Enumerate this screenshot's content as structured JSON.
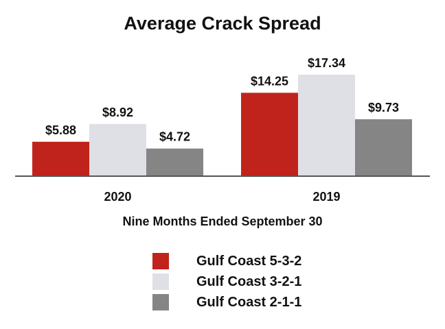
{
  "chart_data": {
    "type": "bar",
    "title": "Average Crack Spread",
    "xlabel": "Nine Months Ended September 30",
    "ylabel": "",
    "categories": [
      "2020",
      "2019"
    ],
    "series": [
      {
        "name": "Gulf Coast 5-3-2",
        "color": "#c0231b",
        "values": [
          5.88,
          14.25
        ],
        "labels": [
          "$5.88",
          "$14.25"
        ]
      },
      {
        "name": "Gulf Coast 3-2-1",
        "color": "#dfe0e5",
        "values": [
          8.92,
          17.34
        ],
        "labels": [
          "$8.92",
          "$17.34"
        ]
      },
      {
        "name": "Gulf Coast 2-1-1",
        "color": "#858585",
        "values": [
          4.72,
          9.73
        ],
        "labels": [
          "$4.72",
          "$9.73"
        ]
      }
    ],
    "ylim": [
      0,
      17.34
    ],
    "grid": false,
    "legend": "bottom"
  }
}
